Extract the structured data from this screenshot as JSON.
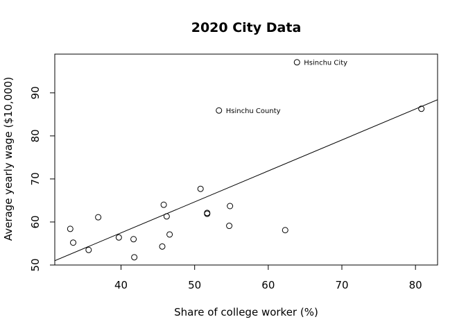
{
  "chart_data": {
    "type": "scatter",
    "title": "2020 City Data",
    "xlabel": "Share of college worker (%)",
    "ylabel": "Average yearly wage ($10,000)",
    "xlim": [
      31,
      83
    ],
    "ylim": [
      50,
      99
    ],
    "xticks": [
      40,
      50,
      60,
      70,
      80
    ],
    "yticks": [
      50,
      60,
      70,
      80,
      90
    ],
    "grid": false,
    "points": [
      {
        "x": 33.1,
        "y": 58.4,
        "label": ""
      },
      {
        "x": 33.5,
        "y": 55.2,
        "label": ""
      },
      {
        "x": 35.6,
        "y": 53.5,
        "label": ""
      },
      {
        "x": 36.9,
        "y": 61.1,
        "label": ""
      },
      {
        "x": 39.7,
        "y": 56.4,
        "label": ""
      },
      {
        "x": 41.7,
        "y": 56.0,
        "label": ""
      },
      {
        "x": 41.8,
        "y": 51.8,
        "label": ""
      },
      {
        "x": 45.6,
        "y": 54.3,
        "label": ""
      },
      {
        "x": 45.8,
        "y": 64.0,
        "label": ""
      },
      {
        "x": 46.2,
        "y": 61.3,
        "label": ""
      },
      {
        "x": 46.6,
        "y": 57.1,
        "label": ""
      },
      {
        "x": 50.8,
        "y": 67.7,
        "label": ""
      },
      {
        "x": 51.7,
        "y": 62.1,
        "label": ""
      },
      {
        "x": 51.7,
        "y": 61.9,
        "label": ""
      },
      {
        "x": 53.3,
        "y": 85.9,
        "label": "Hsinchu County"
      },
      {
        "x": 54.7,
        "y": 59.1,
        "label": ""
      },
      {
        "x": 54.8,
        "y": 63.7,
        "label": ""
      },
      {
        "x": 62.3,
        "y": 58.1,
        "label": ""
      },
      {
        "x": 63.9,
        "y": 97.1,
        "label": "Hsinchu City"
      },
      {
        "x": 80.8,
        "y": 86.3,
        "label": ""
      }
    ],
    "regression_line": {
      "x": [
        31,
        83
      ],
      "y": [
        51.0,
        88.4
      ]
    }
  }
}
